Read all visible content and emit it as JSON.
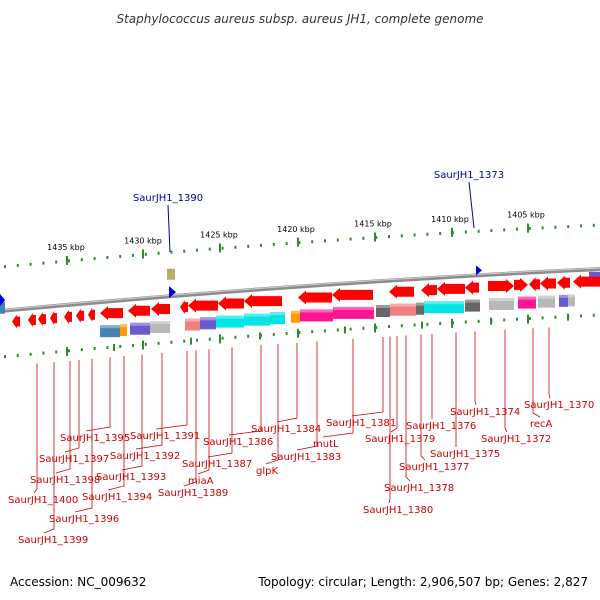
{
  "title": "Staphylococcus aureus subsp. aureus JH1, complete genome",
  "footer": {
    "accession": "Accession: NC_009632",
    "topology": "Topology: circular; Length: 2,906,507 bp; Genes: 2,827"
  },
  "colors": {
    "backbone": "#8c8c8c",
    "tick": "#2e8b2e",
    "gene_arrow": "#ff0000",
    "label_red": "#cc0000",
    "label_blue": "#000099",
    "blue_marker": "#0000dd",
    "cyan": "#00e5e5",
    "magenta": "#ff1493",
    "gray": "#b8b8b8",
    "dark_gray": "#666666",
    "steel_blue": "#4682b4",
    "slate_blue": "#6a5acd",
    "orange": "#ff9900",
    "pink": "#f08080",
    "olive": "#b5ad6a"
  },
  "scale": {
    "labels": [
      "1435 kbp",
      "1430 kbp",
      "1425 kbp",
      "1420 kbp",
      "1415 kbp",
      "1410 kbp",
      "1405 kbp"
    ]
  },
  "top_labels": [
    "SaurJH1_1390",
    "SaurJH1_1373"
  ],
  "bottom_labels": [
    "SaurJH1_1370",
    "recA",
    "SaurJH1_1372",
    "SaurJH1_1374",
    "SaurJH1_1375",
    "SaurJH1_1376",
    "SaurJH1_1377",
    "SaurJH1_1378",
    "SaurJH1_1379",
    "SaurJH1_1380",
    "SaurJH1_1381",
    "mutL",
    "SaurJH1_1383",
    "SaurJH1_1384",
    "glpK",
    "SaurJH1_1386",
    "SaurJH1_1387",
    "miaA",
    "SaurJH1_1389",
    "SaurJH1_1391",
    "SaurJH1_1392",
    "SaurJH1_1393",
    "SaurJH1_1394",
    "SaurJH1_1395",
    "SaurJH1_1396",
    "SaurJH1_1397",
    "SaurJH1_1398",
    "SaurJH1_1399",
    "SaurJH1_1400"
  ]
}
